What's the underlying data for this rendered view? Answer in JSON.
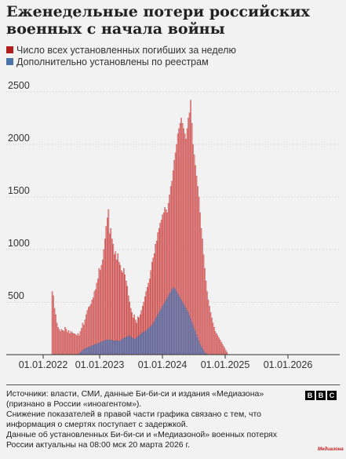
{
  "title": "Еженедельные потери российских военных с начала войны",
  "legend": [
    {
      "label": "Число всех установленных погибших за неделю",
      "color": "#b51d1d"
    },
    {
      "label": "Дополнительно установлены по реестрам",
      "color": "#4a74a8"
    }
  ],
  "chart_data": {
    "type": "bar",
    "stacked": "overlay",
    "x_start": "2022-02-24",
    "x_step": "1 week",
    "x_ticks": [
      "01.01.2022",
      "01.01.2023",
      "01.01.2024",
      "01.01.2025",
      "01.01.2026"
    ],
    "y_ticks": [
      500,
      1000,
      1500,
      2000,
      2500
    ],
    "ylim": [
      0,
      2500
    ],
    "grid": "horizontal",
    "total_color": "#e8a3a3",
    "total_stroke": "#c63f3f",
    "registry_color": "#8a8fb8",
    "registry_stroke": "#5b6596",
    "series": [
      {
        "name": "Число всех установленных погибших за неделю",
        "values": [
          600,
          560,
          440,
          380,
          300,
          260,
          240,
          220,
          240,
          230,
          220,
          260,
          240,
          210,
          230,
          200,
          220,
          210,
          200,
          200,
          190,
          180,
          200,
          180,
          220,
          250,
          300,
          280,
          330,
          380,
          420,
          450,
          460,
          480,
          520,
          540,
          600,
          620,
          680,
          720,
          820,
          800,
          850,
          900,
          1000,
          1100,
          1220,
          1300,
          1380,
          1150,
          1200,
          1100,
          1050,
          950,
          980,
          900,
          960,
          880,
          850,
          800,
          780,
          820,
          760,
          700,
          650,
          560,
          500,
          440,
          400,
          350,
          380,
          330,
          300,
          360,
          350,
          380,
          420,
          460,
          500,
          550,
          600,
          640,
          680,
          720,
          800,
          880,
          920,
          960,
          1050,
          1080,
          1160,
          1200,
          1250,
          1280,
          1330,
          1350,
          1400,
          1380,
          1350,
          1440,
          1520,
          1600,
          1650,
          1750,
          1850,
          1920,
          2000,
          2100,
          2150,
          2200,
          2250,
          2200,
          2150,
          2100,
          2050,
          2150,
          2250,
          2300,
          2420,
          2200,
          2000,
          1900,
          1800,
          1700,
          1600,
          1500,
          1350,
          1200,
          1100,
          950,
          820,
          700,
          600,
          520,
          460,
          400,
          350,
          300,
          260,
          220,
          200,
          180,
          160,
          140,
          120,
          100,
          80,
          60,
          40,
          20
        ],
        "color": "#b51d1d"
      },
      {
        "name": "Дополнительно установлены по реестрам",
        "values": [
          0,
          0,
          0,
          0,
          0,
          0,
          0,
          0,
          0,
          0,
          0,
          0,
          0,
          0,
          0,
          0,
          0,
          0,
          0,
          0,
          0,
          0,
          0,
          10,
          20,
          30,
          40,
          50,
          55,
          60,
          65,
          70,
          75,
          80,
          85,
          90,
          95,
          100,
          100,
          105,
          110,
          115,
          120,
          125,
          130,
          135,
          140,
          140,
          140,
          140,
          140,
          135,
          130,
          130,
          130,
          135,
          130,
          125,
          130,
          140,
          150,
          155,
          160,
          165,
          170,
          175,
          180,
          170,
          160,
          155,
          150,
          150,
          160,
          170,
          180,
          190,
          200,
          210,
          215,
          220,
          230,
          240,
          250,
          260,
          270,
          280,
          300,
          320,
          340,
          360,
          380,
          400,
          420,
          440,
          460,
          480,
          500,
          520,
          540,
          560,
          580,
          600,
          620,
          640,
          630,
          620,
          600,
          580,
          560,
          540,
          520,
          500,
          480,
          460,
          440,
          420,
          400,
          370,
          340,
          310,
          280,
          250,
          220,
          190,
          160,
          130,
          100,
          80,
          60,
          40,
          20,
          10,
          5,
          0,
          0,
          0,
          0,
          0,
          0,
          0,
          0,
          0,
          0,
          0,
          0,
          0,
          0,
          0
        ],
        "color": "#4a74a8"
      }
    ]
  },
  "footer": {
    "line1": "Источники: власти, СМИ, данные Би-би-си и издания «Медиазона» (признано в России «иноагентом»).",
    "line2": "Снижение показателей в правой части графика связано с тем, что информация о смертях поступает с задержкой.",
    "line3": "Данные об установленных Би-би-си и «Медиазоной» военных потерях России актуальны на 08:00 мск 20 марта 2026 г."
  },
  "branding": {
    "bbc": [
      "B",
      "B",
      "C"
    ],
    "mediazona": "Медиазона"
  }
}
